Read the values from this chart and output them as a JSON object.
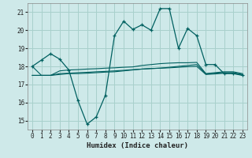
{
  "xlabel": "Humidex (Indice chaleur)",
  "ylabel": "",
  "xlim": [
    -0.5,
    23.5
  ],
  "ylim": [
    14.5,
    21.5
  ],
  "yticks": [
    15,
    16,
    17,
    18,
    19,
    20,
    21
  ],
  "xticks": [
    0,
    1,
    2,
    3,
    4,
    5,
    6,
    7,
    8,
    9,
    10,
    11,
    12,
    13,
    14,
    15,
    16,
    17,
    18,
    19,
    20,
    21,
    22,
    23
  ],
  "background_color": "#cee9e9",
  "grid_color": "#a8d0cc",
  "line_color": "#006060",
  "line1_y": [
    18.0,
    18.35,
    18.7,
    18.4,
    17.8,
    16.1,
    14.8,
    15.2,
    16.4,
    19.7,
    20.5,
    20.05,
    20.3,
    20.0,
    21.2,
    21.2,
    19.0,
    20.1,
    19.7,
    18.1,
    18.1,
    17.6,
    17.6,
    17.5
  ],
  "line2_y": [
    17.5,
    17.5,
    17.5,
    17.55,
    17.6,
    17.6,
    17.62,
    17.65,
    17.68,
    17.7,
    17.75,
    17.8,
    17.85,
    17.88,
    17.9,
    17.95,
    18.0,
    18.05,
    18.1,
    17.58,
    17.62,
    17.65,
    17.65,
    17.55
  ],
  "line3_y": [
    18.0,
    17.5,
    17.5,
    17.75,
    17.8,
    17.82,
    17.85,
    17.87,
    17.9,
    17.92,
    17.95,
    17.97,
    18.05,
    18.1,
    18.15,
    18.18,
    18.2,
    18.2,
    18.22,
    17.6,
    17.65,
    17.7,
    17.7,
    17.6
  ],
  "line4_y": [
    17.5,
    17.5,
    17.5,
    17.6,
    17.62,
    17.65,
    17.67,
    17.7,
    17.72,
    17.75,
    17.78,
    17.82,
    17.85,
    17.88,
    17.9,
    17.92,
    17.95,
    17.98,
    18.0,
    17.55,
    17.58,
    17.62,
    17.62,
    17.52
  ]
}
